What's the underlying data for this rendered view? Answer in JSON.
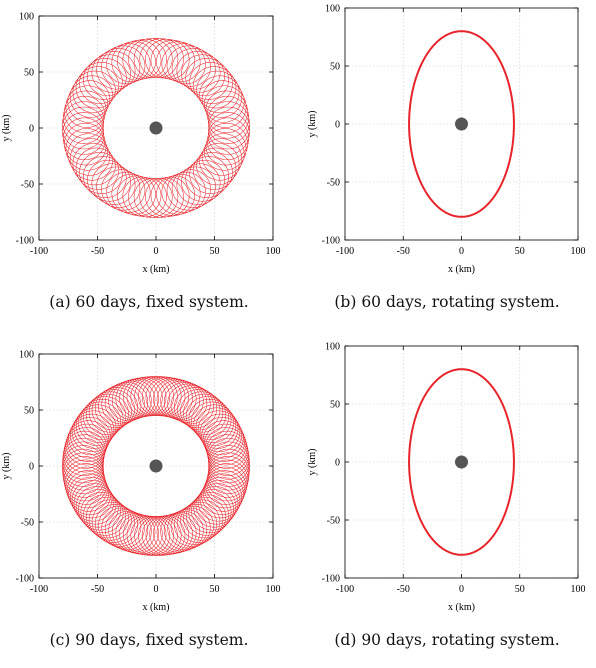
{
  "figure": {
    "panels": [
      {
        "caption": "(a) 60 days, fixed system."
      },
      {
        "caption": "(b) 60 days, rotating system."
      },
      {
        "caption": "(c) 90 days, fixed system."
      },
      {
        "caption": "(d) 90 days, rotating system."
      }
    ]
  },
  "chart_data": [
    {
      "type": "line",
      "panel": "a",
      "xlabel": "x (km)",
      "ylabel": "y (km)",
      "xlim": [
        -100,
        100
      ],
      "ylim": [
        -100,
        100
      ],
      "xticks": [
        "-100",
        "-50",
        "0",
        "50",
        "100"
      ],
      "yticks": [
        "-100",
        "-50",
        "0",
        "50",
        "100"
      ],
      "grid": true,
      "line_color": "#e8242b",
      "central_body": {
        "x": 0,
        "y": 0,
        "color": "#555555"
      },
      "trajectory": {
        "kind": "epicycle-rosette",
        "inner_radius_km": 45,
        "outer_radius_km": 80,
        "semi_minor_km": 45,
        "semi_major_km": 80,
        "loops": 40
      }
    },
    {
      "type": "line",
      "panel": "b",
      "xlabel": "x (km)",
      "ylabel": "y (km)",
      "xlim": [
        -100,
        100
      ],
      "ylim": [
        -100,
        100
      ],
      "xticks": [
        "-100",
        "-50",
        "0",
        "50",
        "100"
      ],
      "yticks": [
        "-100",
        "-50",
        "0",
        "50",
        "100"
      ],
      "grid": true,
      "line_color": "#e8242b",
      "central_body": {
        "x": 0,
        "y": 0,
        "color": "#555555"
      },
      "trajectory": {
        "kind": "ellipse",
        "semi_axis_x_km": 45,
        "semi_axis_y_km": 80
      }
    },
    {
      "type": "line",
      "panel": "c",
      "xlabel": "x (km)",
      "ylabel": "y (km)",
      "xlim": [
        -100,
        100
      ],
      "ylim": [
        -100,
        100
      ],
      "xticks": [
        "-100",
        "-50",
        "0",
        "50",
        "100"
      ],
      "yticks": [
        "-100",
        "-50",
        "0",
        "50",
        "100"
      ],
      "grid": true,
      "line_color": "#e8242b",
      "central_body": {
        "x": 0,
        "y": 0,
        "color": "#555555"
      },
      "trajectory": {
        "kind": "epicycle-rosette",
        "inner_radius_km": 45,
        "outer_radius_km": 80,
        "semi_minor_km": 45,
        "semi_major_km": 80,
        "loops": 60
      }
    },
    {
      "type": "line",
      "panel": "d",
      "xlabel": "x (km)",
      "ylabel": "y (km)",
      "xlim": [
        -100,
        100
      ],
      "ylim": [
        -100,
        100
      ],
      "xticks": [
        "-100",
        "-50",
        "0",
        "50",
        "100"
      ],
      "yticks": [
        "-100",
        "-50",
        "0",
        "50",
        "100"
      ],
      "grid": true,
      "line_color": "#e8242b",
      "central_body": {
        "x": 0,
        "y": 0,
        "color": "#555555"
      },
      "trajectory": {
        "kind": "ellipse",
        "semi_axis_x_km": 45,
        "semi_axis_y_km": 80
      }
    }
  ]
}
